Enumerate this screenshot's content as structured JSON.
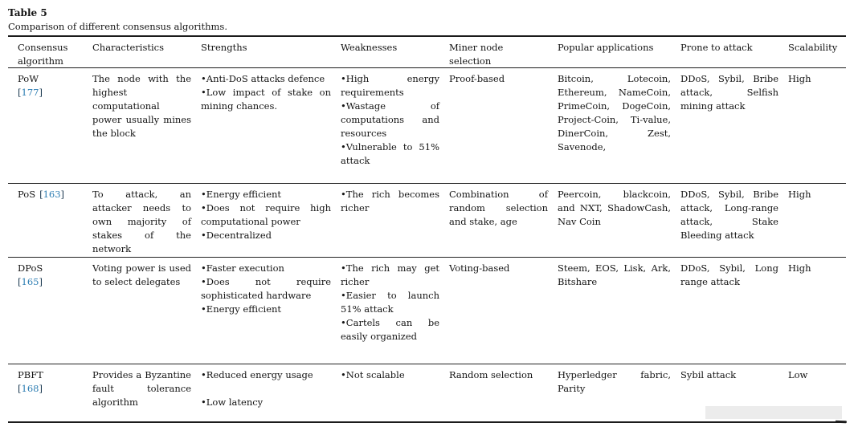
{
  "colors": {
    "citation_blue": "#2e7eb3",
    "text": "#141414",
    "rule": "#1b1b1b"
  },
  "table": {
    "label": "Table 5",
    "caption": "Comparison of different consensus algorithms.",
    "columns": [
      "Consensus algorithm",
      "Characteristics",
      "Strengths",
      "Weaknesses",
      "Miner node selection",
      "Popular applications",
      "Prone to attack",
      "Scalability"
    ],
    "rows": [
      {
        "name": "PoW",
        "ref": {
          "open": "[",
          "num": "177",
          "close": "]"
        },
        "characteristics": "The node with the highest computational power usually mines the block",
        "strengths": [
          "Anti-DoS attacks defence",
          "Low impact of stake on mining chances."
        ],
        "weaknesses": [
          "High energy requirements",
          "Wastage of computations and resources",
          "Vulnerable to 51% attack"
        ],
        "miner_node_selection": "Proof-based",
        "popular_applications": "Bitcoin, Lotecoin, Ethereum, NameCoin, PrimeCoin, DogeCoin, Project-Coin, Ti-value, DinerCoin, Zest, Savenode,",
        "prone_to_attack": "DDoS, Sybil, Bribe attack, Selfish mining attack",
        "scalability": "High"
      },
      {
        "name": "PoS",
        "ref": {
          "open": "[",
          "num": "163",
          "close": "]"
        },
        "characteristics": "To attack, an attacker needs to own majority of stakes of the network",
        "strengths": [
          "Energy efficient",
          "Does not require high computational power",
          "Decentralized"
        ],
        "weaknesses": [
          "The rich becomes richer"
        ],
        "miner_node_selection": "Combination of random selection and stake, age",
        "popular_applications": "Peercoin, blackcoin, and NXT, ShadowCash, Nav Coin",
        "prone_to_attack": "DDoS, Sybil, Bribe attack, Long-range attack, Stake Bleeding attack",
        "scalability": "High"
      },
      {
        "name": "DPoS",
        "ref": {
          "open": "[",
          "num": "165",
          "close": "]"
        },
        "characteristics": "Voting power is used to select delegates",
        "strengths": [
          "Faster execution",
          "Does not require sophisticated hardware",
          "Energy efficient"
        ],
        "weaknesses": [
          "The rich may get richer",
          "Easier to launch 51% attack",
          "Cartels can be easily organized"
        ],
        "miner_node_selection": "Voting-based",
        "popular_applications": "Steem, EOS, Lisk, Ark, Bitshare",
        "prone_to_attack": "DDoS, Sybil, Long range attack",
        "scalability": "High"
      },
      {
        "name": "PBFT",
        "ref": {
          "open": "[",
          "num": "168",
          "close": "]"
        },
        "characteristics": "Provides a Byzantine fault tolerance algorithm",
        "strengths": [
          "Reduced energy usage",
          "",
          "Low latency"
        ],
        "weaknesses": [
          "Not scalable"
        ],
        "miner_node_selection": "Random selection",
        "popular_applications": "Hyperledger fabric, Parity",
        "prone_to_attack": "Sybil attack",
        "scalability": "Low"
      }
    ]
  }
}
